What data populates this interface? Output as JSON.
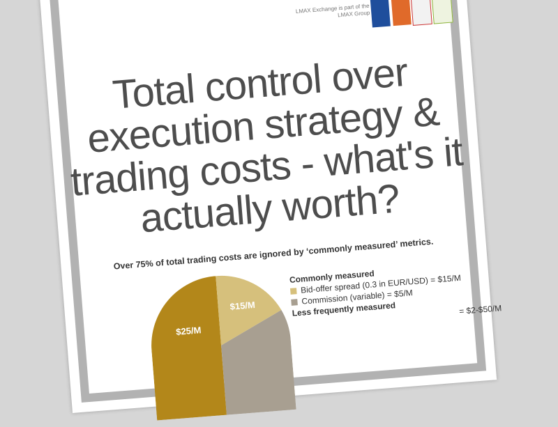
{
  "header": {
    "brand_note": "LMAX Exchange is part of the LMAX Group"
  },
  "title": "Total control over execution strategy & trading costs - what's it actually worth?",
  "subtitle": "Over 75% of total trading costs are ignored by ‘commonly measured’ metrics.",
  "pie": {
    "labels": [
      "$25/M",
      "$15/M"
    ]
  },
  "legend": {
    "groups": [
      {
        "heading": "Commonly measured",
        "items": [
          "Bid-offer spread (0.3 in EUR/USD) = $15/M",
          "Commission (variable) = $5/M"
        ]
      },
      {
        "heading": "Less frequently measured",
        "items": [
          "= $2-$50/M"
        ]
      }
    ]
  }
}
